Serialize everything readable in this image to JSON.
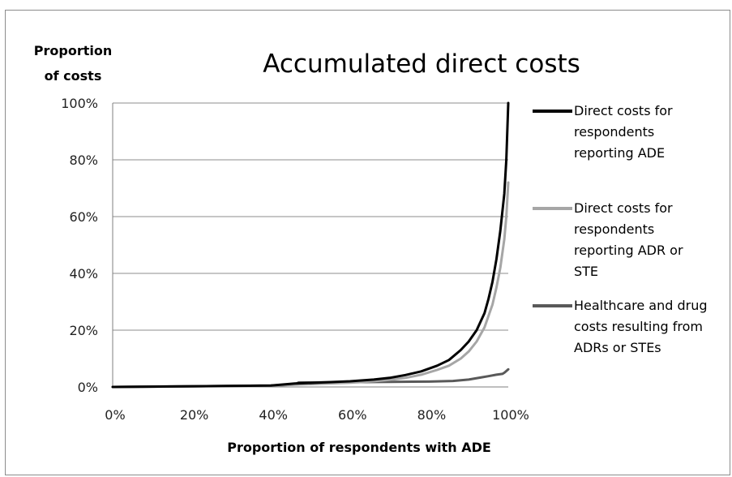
{
  "chart_data": {
    "type": "line",
    "title": "Accumulated direct costs",
    "ylabel_lines": [
      "Proportion",
      "of costs"
    ],
    "xlabel": "Proportion of respondents with ADE",
    "xlim": [
      0,
      100
    ],
    "ylim": [
      0,
      100
    ],
    "x_ticks": [
      "0%",
      "20%",
      "40%",
      "60%",
      "80%",
      "100%"
    ],
    "y_ticks": [
      "0%",
      "20%",
      "40%",
      "60%",
      "80%",
      "100%"
    ],
    "grid": "horizontal",
    "legend_position": "right",
    "series": [
      {
        "name_lines": [
          "Direct costs for",
          "respondents",
          "reporting ADE"
        ],
        "color": "#000000",
        "x": [
          0,
          40,
          46,
          60,
          66,
          70,
          74,
          78,
          82,
          85,
          88,
          90,
          92,
          94,
          95,
          96,
          97,
          98,
          99,
          99.5,
          100
        ],
        "y": [
          0,
          0.5,
          1.2,
          2,
          2.6,
          3.2,
          4.2,
          5.5,
          7.5,
          9.5,
          13,
          16,
          20,
          26,
          31,
          37,
          45,
          55,
          68,
          80,
          100
        ]
      },
      {
        "name_lines": [
          "Direct costs for",
          "respondents",
          "reporting ADR or",
          "STE"
        ],
        "color": "#a6a6a6",
        "x": [
          0,
          40,
          46,
          60,
          66,
          70,
          74,
          78,
          82,
          85,
          88,
          90,
          92,
          94,
          95,
          96,
          97,
          98,
          99,
          99.5,
          100
        ],
        "y": [
          0,
          0.4,
          0.8,
          1.5,
          2,
          2.5,
          3.2,
          4.3,
          6,
          7.5,
          10,
          12.5,
          16,
          21,
          25,
          29,
          35,
          42,
          52,
          60,
          72
        ]
      },
      {
        "name_lines": [
          "Healthcare and drug",
          "costs resulting from",
          "ADRs or STEs"
        ],
        "color": "#595959",
        "x": [
          0,
          40,
          46,
          47,
          60,
          70,
          80,
          86,
          90,
          93,
          95,
          97,
          98.5,
          99,
          99.5,
          100
        ],
        "y": [
          0,
          0.5,
          0.9,
          1.6,
          1.7,
          1.8,
          1.9,
          2.1,
          2.6,
          3.3,
          3.8,
          4.3,
          4.6,
          5,
          5.6,
          6.2
        ]
      }
    ]
  }
}
